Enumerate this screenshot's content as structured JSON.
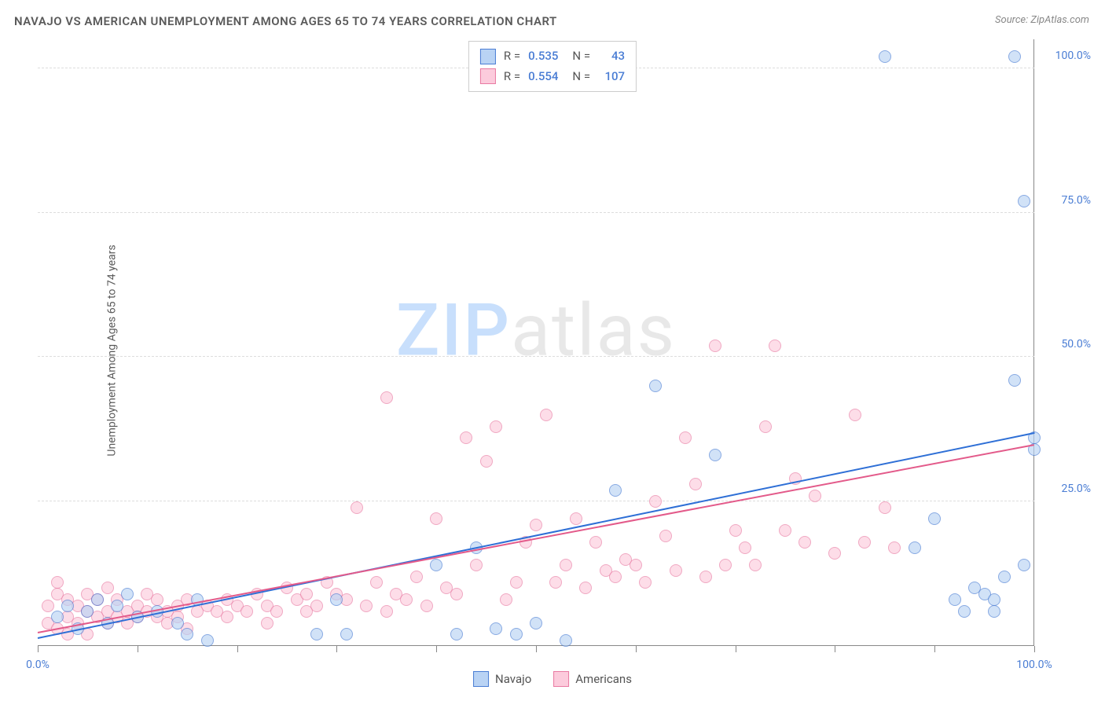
{
  "title": "NAVAJO VS AMERICAN UNEMPLOYMENT AMONG AGES 65 TO 74 YEARS CORRELATION CHART",
  "source_label": "Source: ZipAtlas.com",
  "y_axis_label": "Unemployment Among Ages 65 to 74 years",
  "watermark_zip": "ZIP",
  "watermark_atlas": "atlas",
  "chart": {
    "type": "scatter",
    "xlim": [
      0,
      100
    ],
    "ylim": [
      0,
      105
    ],
    "y_ticks": [
      {
        "value": 25,
        "label": "25.0%"
      },
      {
        "value": 50,
        "label": "50.0%"
      },
      {
        "value": 75,
        "label": "75.0%"
      },
      {
        "value": 100,
        "label": "100.0%"
      }
    ],
    "x_ticks": [
      0,
      10,
      20,
      30,
      40,
      50,
      60,
      70,
      80,
      90,
      100
    ],
    "x_tick_labels": [
      {
        "value": 0,
        "label": "0.0%"
      },
      {
        "value": 100,
        "label": "100.0%"
      }
    ],
    "background_color": "#ffffff",
    "grid_color": "#dddddd",
    "axis_color": "#888888",
    "tick_label_color": "#4a7dd4",
    "marker_radius": 8,
    "marker_opacity": 0.65,
    "series": [
      {
        "name": "Navajo",
        "fill_color": "#b9d3f4",
        "stroke_color": "#4a7dd4",
        "r_value": "0.535",
        "n_value": "43",
        "trend": {
          "x1": 0,
          "y1": 1.5,
          "x2": 100,
          "y2": 37,
          "color": "#2e6fd6",
          "width": 2
        },
        "points": [
          [
            2,
            5
          ],
          [
            3,
            7
          ],
          [
            4,
            3
          ],
          [
            5,
            6
          ],
          [
            6,
            8
          ],
          [
            7,
            4
          ],
          [
            8,
            7
          ],
          [
            9,
            9
          ],
          [
            10,
            5
          ],
          [
            12,
            6
          ],
          [
            14,
            4
          ],
          [
            15,
            2
          ],
          [
            16,
            8
          ],
          [
            17,
            1
          ],
          [
            28,
            2
          ],
          [
            30,
            8
          ],
          [
            31,
            2
          ],
          [
            40,
            14
          ],
          [
            42,
            2
          ],
          [
            44,
            17
          ],
          [
            46,
            3
          ],
          [
            48,
            2
          ],
          [
            50,
            4
          ],
          [
            53,
            1
          ],
          [
            58,
            27
          ],
          [
            62,
            45
          ],
          [
            68,
            33
          ],
          [
            85,
            102
          ],
          [
            88,
            17
          ],
          [
            90,
            22
          ],
          [
            92,
            8
          ],
          [
            93,
            6
          ],
          [
            94,
            10
          ],
          [
            95,
            9
          ],
          [
            96,
            8
          ],
          [
            97,
            12
          ],
          [
            98,
            102
          ],
          [
            98,
            46
          ],
          [
            99,
            77
          ],
          [
            100,
            34
          ],
          [
            100,
            36
          ],
          [
            99,
            14
          ],
          [
            96,
            6
          ]
        ]
      },
      {
        "name": "Americans",
        "fill_color": "#fccbdc",
        "stroke_color": "#e97aa2",
        "r_value": "0.554",
        "n_value": "107",
        "trend": {
          "x1": 0,
          "y1": 2.5,
          "x2": 100,
          "y2": 35,
          "color": "#e35a8a",
          "width": 2
        },
        "points": [
          [
            1,
            4
          ],
          [
            1,
            7
          ],
          [
            2,
            9
          ],
          [
            2,
            3
          ],
          [
            3,
            5
          ],
          [
            3,
            8
          ],
          [
            4,
            4
          ],
          [
            4,
            7
          ],
          [
            5,
            6
          ],
          [
            5,
            9
          ],
          [
            6,
            5
          ],
          [
            6,
            8
          ],
          [
            7,
            4
          ],
          [
            7,
            6
          ],
          [
            8,
            5
          ],
          [
            8,
            8
          ],
          [
            9,
            6
          ],
          [
            9,
            4
          ],
          [
            10,
            7
          ],
          [
            10,
            5
          ],
          [
            11,
            6
          ],
          [
            12,
            5
          ],
          [
            12,
            8
          ],
          [
            13,
            6
          ],
          [
            14,
            7
          ],
          [
            14,
            5
          ],
          [
            15,
            8
          ],
          [
            16,
            6
          ],
          [
            17,
            7
          ],
          [
            18,
            6
          ],
          [
            19,
            8
          ],
          [
            20,
            7
          ],
          [
            21,
            6
          ],
          [
            22,
            9
          ],
          [
            23,
            7
          ],
          [
            24,
            6
          ],
          [
            25,
            10
          ],
          [
            26,
            8
          ],
          [
            27,
            9
          ],
          [
            28,
            7
          ],
          [
            29,
            11
          ],
          [
            30,
            9
          ],
          [
            31,
            8
          ],
          [
            32,
            24
          ],
          [
            33,
            7
          ],
          [
            34,
            11
          ],
          [
            35,
            43
          ],
          [
            36,
            9
          ],
          [
            37,
            8
          ],
          [
            38,
            12
          ],
          [
            39,
            7
          ],
          [
            40,
            22
          ],
          [
            41,
            10
          ],
          [
            42,
            9
          ],
          [
            43,
            36
          ],
          [
            44,
            14
          ],
          [
            45,
            32
          ],
          [
            46,
            38
          ],
          [
            47,
            8
          ],
          [
            48,
            11
          ],
          [
            49,
            18
          ],
          [
            50,
            21
          ],
          [
            51,
            40
          ],
          [
            52,
            11
          ],
          [
            53,
            14
          ],
          [
            54,
            22
          ],
          [
            55,
            10
          ],
          [
            56,
            18
          ],
          [
            57,
            13
          ],
          [
            58,
            12
          ],
          [
            59,
            15
          ],
          [
            60,
            14
          ],
          [
            61,
            11
          ],
          [
            62,
            25
          ],
          [
            63,
            19
          ],
          [
            64,
            13
          ],
          [
            65,
            36
          ],
          [
            66,
            28
          ],
          [
            67,
            12
          ],
          [
            68,
            52
          ],
          [
            69,
            14
          ],
          [
            70,
            20
          ],
          [
            71,
            17
          ],
          [
            72,
            14
          ],
          [
            73,
            38
          ],
          [
            74,
            52
          ],
          [
            75,
            20
          ],
          [
            76,
            29
          ],
          [
            77,
            18
          ],
          [
            78,
            26
          ],
          [
            80,
            16
          ],
          [
            82,
            40
          ],
          [
            83,
            18
          ],
          [
            85,
            24
          ],
          [
            86,
            17
          ],
          [
            2,
            11
          ],
          [
            3,
            2
          ],
          [
            5,
            2
          ],
          [
            7,
            10
          ],
          [
            11,
            9
          ],
          [
            13,
            4
          ],
          [
            15,
            3
          ],
          [
            19,
            5
          ],
          [
            23,
            4
          ],
          [
            27,
            6
          ],
          [
            35,
            6
          ]
        ]
      }
    ]
  },
  "legend_top": {
    "r_label": "R =",
    "n_label": "N ="
  },
  "legend_bottom": [
    {
      "label": "Navajo",
      "fill": "#b9d3f4",
      "stroke": "#4a7dd4"
    },
    {
      "label": "Americans",
      "fill": "#fccbdc",
      "stroke": "#e97aa2"
    }
  ]
}
